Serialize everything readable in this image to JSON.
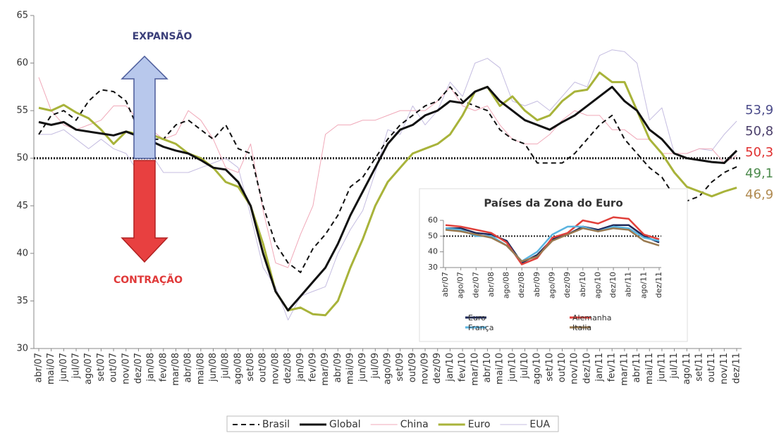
{
  "chart_data": {
    "type": "line",
    "ylim": [
      30,
      65
    ],
    "yticks": [
      30,
      35,
      40,
      45,
      50,
      55,
      60,
      65
    ],
    "reference_line": 50,
    "annotations": [
      {
        "text": "EXPANSÃO",
        "color": "#3b3f7a"
      },
      {
        "text": "CONTRAÇÃO",
        "color": "#e03a3a"
      }
    ],
    "categories": [
      "abr/07",
      "mai/07",
      "jun/07",
      "jul/07",
      "ago/07",
      "set/07",
      "out/07",
      "nov/07",
      "dez/07",
      "jan/08",
      "fev/08",
      "mar/08",
      "abr/08",
      "mai/08",
      "jun/08",
      "jul/08",
      "ago/08",
      "set/08",
      "out/08",
      "nov/08",
      "dez/08",
      "jan/09",
      "fev/09",
      "mar/09",
      "abr/09",
      "mai/09",
      "jun/09",
      "jul/09",
      "ago/09",
      "set/09",
      "out/09",
      "nov/09",
      "dez/09",
      "jan/10",
      "fev/10",
      "mar/10",
      "abr/10",
      "mai/10",
      "jun/10",
      "jul/10",
      "ago/10",
      "set/10",
      "out/10",
      "nov/10",
      "dez/10",
      "jan/11",
      "fev/11",
      "mar/11",
      "abr/11",
      "mai/11",
      "jun/11",
      "jul/11",
      "ago/11",
      "set/11",
      "out/11",
      "nov/11",
      "dez/11"
    ],
    "series": [
      {
        "name": "Brasil",
        "color": "#111111",
        "width": 2,
        "dash": "dashed",
        "end_label": "49,1",
        "end_label_color": "#4c8a4c",
        "values": [
          52.5,
          54.5,
          55.0,
          54.0,
          56.0,
          57.2,
          57.0,
          56.0,
          53.0,
          52.0,
          52.0,
          53.5,
          54.0,
          53.0,
          52.0,
          53.5,
          51.0,
          50.5,
          45.0,
          41.0,
          39.0,
          38.0,
          40.5,
          42.0,
          44.0,
          47.0,
          48.0,
          50.0,
          52.0,
          53.5,
          54.5,
          55.5,
          56.0,
          57.5,
          56.0,
          55.5,
          55.0,
          53.0,
          52.0,
          51.5,
          49.5,
          49.5,
          49.5,
          50.5,
          52.0,
          53.5,
          54.5,
          52.0,
          50.5,
          49.0,
          48.0,
          46.0,
          45.5,
          46.0,
          47.5,
          48.5,
          49.1
        ]
      },
      {
        "name": "Global",
        "color": "#111111",
        "width": 3,
        "dash": "solid",
        "end_label": "50,8",
        "end_label_color": "#4b3f6b",
        "values": [
          53.8,
          53.5,
          53.8,
          53.0,
          52.8,
          52.6,
          52.4,
          52.8,
          52.3,
          51.8,
          51.2,
          50.8,
          50.5,
          49.8,
          49.0,
          48.8,
          47.5,
          45.0,
          40.0,
          36.0,
          34.0,
          35.5,
          37.0,
          38.5,
          41.0,
          44.0,
          46.5,
          49.0,
          51.5,
          53.0,
          53.5,
          54.5,
          55.0,
          56.0,
          55.8,
          57.0,
          57.5,
          56.0,
          55.0,
          54.0,
          53.5,
          53.0,
          53.8,
          54.5,
          55.5,
          56.5,
          57.5,
          56.0,
          55.0,
          53.0,
          52.0,
          50.5,
          50.0,
          49.8,
          49.6,
          49.5,
          50.8
        ]
      },
      {
        "name": "China",
        "color": "#f0a8b8",
        "width": 1,
        "dash": "solid",
        "end_label": "50,3",
        "end_label_color": "#e03030",
        "values": [
          58.5,
          55.0,
          53.5,
          53.0,
          53.5,
          54.0,
          55.5,
          55.5,
          54.0,
          53.0,
          52.0,
          52.5,
          55.0,
          54.0,
          52.0,
          49.0,
          48.5,
          51.5,
          44.5,
          39.0,
          38.5,
          42.0,
          45.0,
          52.5,
          53.5,
          53.5,
          54.0,
          54.0,
          54.5,
          55.0,
          55.0,
          55.0,
          56.0,
          57.5,
          55.5,
          55.0,
          55.5,
          53.5,
          52.0,
          51.5,
          51.5,
          52.5,
          54.0,
          55.0,
          54.5,
          54.5,
          53.0,
          53.0,
          52.0,
          52.0,
          50.5,
          50.5,
          50.5,
          51.0,
          51.0,
          49.5,
          50.3
        ]
      },
      {
        "name": "Euro",
        "color": "#a8b33a",
        "width": 3,
        "dash": "solid",
        "end_label": "46,9",
        "end_label_color": "#b08a50",
        "values": [
          55.3,
          55.0,
          55.6,
          54.8,
          54.2,
          53.0,
          51.5,
          52.8,
          52.5,
          52.5,
          52.0,
          51.5,
          50.5,
          50.0,
          49.0,
          47.5,
          47.0,
          45.0,
          41.0,
          36.0,
          34.0,
          34.3,
          33.6,
          33.5,
          35.0,
          38.5,
          41.5,
          45.0,
          47.5,
          49.0,
          50.5,
          51.0,
          51.5,
          52.5,
          54.5,
          57.0,
          57.5,
          55.5,
          56.5,
          55.0,
          54.0,
          54.5,
          56.0,
          57.0,
          57.2,
          59.0,
          58.0,
          58.0,
          55.0,
          52.0,
          50.5,
          48.5,
          47.0,
          46.5,
          46.0,
          46.5,
          46.9
        ]
      },
      {
        "name": "EUA",
        "color": "#c4bce0",
        "width": 1,
        "dash": "solid",
        "end_label": "53,9",
        "end_label_color": "#4b4b8a",
        "values": [
          52.5,
          52.5,
          53.0,
          52.0,
          51.0,
          52.0,
          51.0,
          50.5,
          48.5,
          50.5,
          48.5,
          48.5,
          48.5,
          49.0,
          49.5,
          50.0,
          49.0,
          44.0,
          38.5,
          36.5,
          33.0,
          35.5,
          36.0,
          36.5,
          40.0,
          42.5,
          44.5,
          48.5,
          53.0,
          52.5,
          55.5,
          53.5,
          55.0,
          58.0,
          56.5,
          60.0,
          60.5,
          59.5,
          56.0,
          55.5,
          56.0,
          55.0,
          56.5,
          58.0,
          57.5,
          60.8,
          61.4,
          61.2,
          60.0,
          54.0,
          55.3,
          50.5,
          50.5,
          51.0,
          50.8,
          52.5,
          53.9
        ]
      }
    ],
    "inset": {
      "type": "line",
      "title": "Países da Zona do Euro",
      "ylim": [
        30,
        60
      ],
      "yticks": [
        30,
        40,
        50,
        60
      ],
      "reference_line": 50,
      "categories": [
        "abr/07",
        "ago/07",
        "dez/07",
        "abr/08",
        "ago/08",
        "dez/08",
        "abr/09",
        "ago/09",
        "dez/09",
        "abr/10",
        "ago/10",
        "dez/10",
        "abr/11",
        "ago/11",
        "dez/11"
      ],
      "series": [
        {
          "name": "Euro",
          "color": "#1f2a5a",
          "values": [
            55,
            55,
            52,
            51,
            47,
            33,
            38,
            48,
            51,
            56,
            54,
            57,
            57,
            50,
            46
          ]
        },
        {
          "name": "Alemanha",
          "color": "#e0403a",
          "values": [
            57,
            56,
            54,
            52,
            46,
            32,
            36,
            49,
            52,
            60,
            58,
            62,
            61,
            51,
            48
          ]
        },
        {
          "name": "França",
          "color": "#5ab4e0",
          "values": [
            55,
            54,
            50,
            50,
            44,
            34,
            40,
            51,
            56,
            56,
            53,
            56,
            55,
            49,
            47
          ]
        },
        {
          "name": "Italia",
          "color": "#9a7a50",
          "values": [
            54,
            53,
            51,
            49,
            44,
            34,
            37,
            47,
            51,
            55,
            53,
            55,
            54,
            47,
            44
          ]
        }
      ]
    }
  }
}
